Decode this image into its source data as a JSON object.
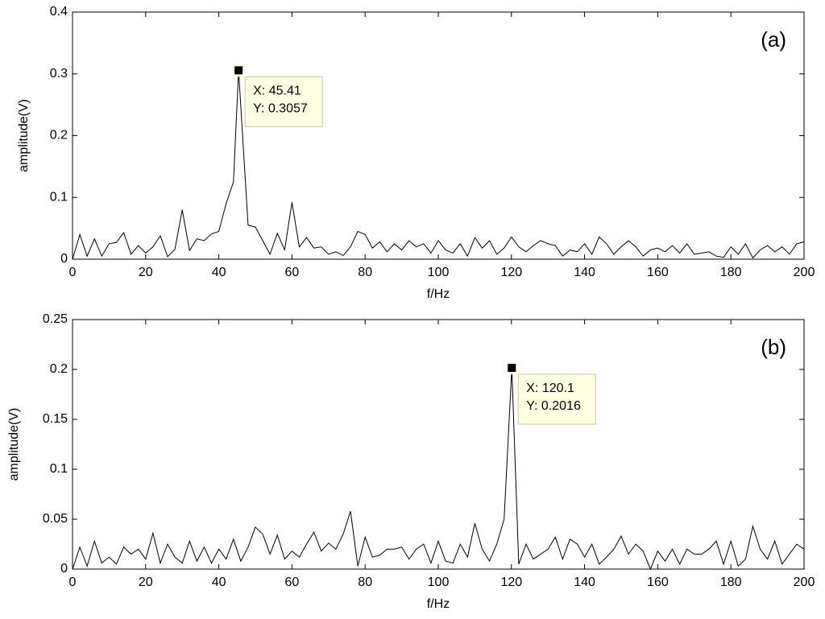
{
  "chart_data": [
    {
      "type": "line",
      "panel_label": "(a)",
      "xlabel": "f/Hz",
      "ylabel": "amplitude(V)",
      "color": "#000000",
      "x": [
        0,
        2,
        4,
        6,
        8,
        10,
        12,
        14,
        16,
        18,
        20,
        22,
        24,
        26,
        28,
        30,
        32,
        34,
        36,
        38,
        40,
        42,
        44,
        45.41,
        48,
        50,
        52,
        54,
        56,
        58,
        60,
        62,
        64,
        66,
        68,
        70,
        72,
        74,
        76,
        78,
        80,
        82,
        84,
        86,
        88,
        90,
        92,
        94,
        96,
        98,
        100,
        102,
        104,
        106,
        108,
        110,
        112,
        114,
        116,
        118,
        120,
        122,
        124,
        126,
        128,
        130,
        132,
        134,
        136,
        138,
        140,
        142,
        144,
        146,
        148,
        150,
        152,
        154,
        156,
        158,
        160,
        162,
        164,
        166,
        168,
        170,
        172,
        174,
        176,
        178,
        180,
        182,
        184,
        186,
        188,
        190,
        192,
        194,
        196,
        198,
        200
      ],
      "values": [
        0,
        0.04,
        0.005,
        0.033,
        0.005,
        0.025,
        0.027,
        0.043,
        0.008,
        0.022,
        0.01,
        0.02,
        0.038,
        0.004,
        0.016,
        0.08,
        0.014,
        0.033,
        0.03,
        0.041,
        0.045,
        0.09,
        0.125,
        0.3057,
        0.055,
        0.052,
        0.03,
        0.008,
        0.042,
        0.015,
        0.092,
        0.02,
        0.035,
        0.018,
        0.02,
        0.008,
        0.012,
        0.006,
        0.02,
        0.045,
        0.04,
        0.018,
        0.028,
        0.012,
        0.025,
        0.015,
        0.03,
        0.02,
        0.025,
        0.01,
        0.03,
        0.015,
        0.01,
        0.025,
        0.005,
        0.035,
        0.018,
        0.03,
        0.008,
        0.018,
        0.036,
        0.02,
        0.012,
        0.022,
        0.03,
        0.025,
        0.022,
        0.005,
        0.015,
        0.012,
        0.025,
        0.008,
        0.036,
        0.025,
        0.008,
        0.02,
        0.03,
        0.02,
        0.005,
        0.015,
        0.018,
        0.012,
        0.022,
        0.01,
        0.025,
        0.008,
        0.01,
        0.012,
        0.005,
        0.003,
        0.02,
        0.008,
        0.025,
        0.002,
        0.015,
        0.022,
        0.012,
        0.02,
        0.008,
        0.025,
        0.028
      ],
      "xlim": [
        0,
        200
      ],
      "ylim": [
        0,
        0.4
      ],
      "xticks": [
        0,
        20,
        40,
        60,
        80,
        100,
        120,
        140,
        160,
        180,
        200
      ],
      "yticks": [
        0,
        0.1,
        0.2,
        0.3,
        0.4
      ],
      "annotation": {
        "x": 45.41,
        "y": 0.3057,
        "labels": [
          "X: 45.41",
          "Y: 0.3057"
        ]
      }
    },
    {
      "type": "line",
      "panel_label": "(b)",
      "xlabel": "f/Hz",
      "ylabel": "amplitude(V)",
      "color": "#000000",
      "x": [
        0,
        2,
        4,
        6,
        8,
        10,
        12,
        14,
        16,
        18,
        20,
        22,
        24,
        26,
        28,
        30,
        32,
        34,
        36,
        38,
        40,
        42,
        44,
        46,
        48,
        50,
        52,
        54,
        56,
        58,
        60,
        62,
        64,
        66,
        68,
        70,
        72,
        74,
        76,
        78,
        80,
        82,
        84,
        86,
        88,
        90,
        92,
        94,
        96,
        98,
        100,
        102,
        104,
        106,
        108,
        110,
        112,
        114,
        116,
        118,
        120.1,
        122,
        124,
        126,
        128,
        130,
        132,
        134,
        136,
        138,
        140,
        142,
        144,
        146,
        148,
        150,
        152,
        154,
        156,
        158,
        160,
        162,
        164,
        166,
        168,
        170,
        172,
        174,
        176,
        178,
        180,
        182,
        184,
        186,
        188,
        190,
        192,
        194,
        196,
        198,
        200
      ],
      "values": [
        0,
        0.022,
        0.003,
        0.028,
        0.006,
        0.012,
        0.005,
        0.022,
        0.015,
        0.02,
        0.01,
        0.036,
        0.006,
        0.025,
        0.012,
        0.006,
        0.028,
        0.008,
        0.022,
        0.006,
        0.02,
        0.01,
        0.03,
        0.008,
        0.022,
        0.042,
        0.035,
        0.015,
        0.034,
        0.01,
        0.018,
        0.012,
        0.025,
        0.037,
        0.018,
        0.026,
        0.02,
        0.035,
        0.058,
        0.003,
        0.032,
        0.012,
        0.014,
        0.02,
        0.02,
        0.022,
        0.01,
        0.02,
        0.025,
        0.006,
        0.028,
        0.008,
        0.006,
        0.025,
        0.012,
        0.046,
        0.02,
        0.008,
        0.025,
        0.05,
        0.2016,
        0.005,
        0.025,
        0.01,
        0.015,
        0.02,
        0.032,
        0.01,
        0.03,
        0.025,
        0.012,
        0.025,
        0.005,
        0.012,
        0.02,
        0.033,
        0.015,
        0.025,
        0.018,
        0,
        0.018,
        0.008,
        0.02,
        0.005,
        0.02,
        0.015,
        0.015,
        0.02,
        0.028,
        0.005,
        0.028,
        0.003,
        0.01,
        0.043,
        0.02,
        0.01,
        0.028,
        0.005,
        0.015,
        0.025,
        0.02
      ],
      "xlim": [
        0,
        200
      ],
      "ylim": [
        0,
        0.25
      ],
      "xticks": [
        0,
        20,
        40,
        60,
        80,
        100,
        120,
        140,
        160,
        180,
        200
      ],
      "yticks": [
        0,
        0.05,
        0.1,
        0.15,
        0.2,
        0.25
      ],
      "annotation": {
        "x": 120.1,
        "y": 0.2016,
        "labels": [
          "X: 120.1",
          "Y: 0.2016"
        ]
      }
    }
  ]
}
